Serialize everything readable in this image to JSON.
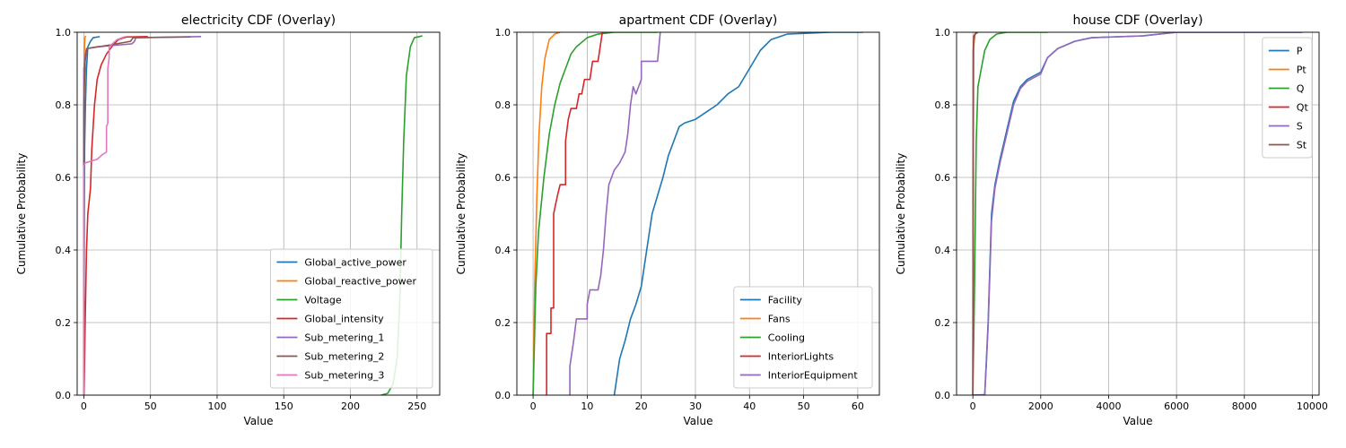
{
  "figure": {
    "colors": [
      "#1f77b4",
      "#ff7f0e",
      "#2ca02c",
      "#d62728",
      "#9467bd",
      "#8c564b",
      "#e377c2"
    ]
  },
  "chart_data": [
    {
      "type": "line",
      "title": "electricity CDF (Overlay)",
      "xlabel": "Value",
      "ylabel": "Cumulative Probability",
      "xlim": [
        -5,
        267
      ],
      "ylim": [
        0,
        1
      ],
      "xticks": [
        0,
        50,
        100,
        150,
        200,
        250
      ],
      "xticklabels": [
        "0",
        "50",
        "100",
        "150",
        "200",
        "250"
      ],
      "yticks": [
        0,
        0.2,
        0.4,
        0.6,
        0.8,
        1.0
      ],
      "yticklabels": [
        "0.0",
        "0.2",
        "0.4",
        "0.6",
        "0.8",
        "1.0"
      ],
      "grid": true,
      "legend_position": "lower-right",
      "series": [
        {
          "name": "Global_active_power",
          "color": "#1f77b4",
          "points": [
            [
              0,
              0
            ],
            [
              0.3,
              0.4
            ],
            [
              0.6,
              0.68
            ],
            [
              1.2,
              0.8
            ],
            [
              2,
              0.9
            ],
            [
              3,
              0.96
            ],
            [
              5,
              0.975
            ],
            [
              7,
              0.985
            ],
            [
              12,
              0.988
            ]
          ]
        },
        {
          "name": "Global_reactive_power",
          "color": "#ff7f0e",
          "points": [
            [
              0,
              0
            ],
            [
              0.1,
              0.45
            ],
            [
              0.2,
              0.8
            ],
            [
              0.4,
              0.95
            ],
            [
              0.8,
              0.985
            ],
            [
              1.4,
              0.99
            ]
          ]
        },
        {
          "name": "Voltage",
          "color": "#2ca02c",
          "points": [
            [
              223,
              0
            ],
            [
              228,
              0.005
            ],
            [
              232,
              0.03
            ],
            [
              235,
              0.1
            ],
            [
              237,
              0.25
            ],
            [
              238.5,
              0.5
            ],
            [
              240,
              0.7
            ],
            [
              242,
              0.88
            ],
            [
              245,
              0.96
            ],
            [
              248,
              0.985
            ],
            [
              254,
              0.99
            ]
          ]
        },
        {
          "name": "Global_intensity",
          "color": "#d62728",
          "points": [
            [
              0.2,
              0
            ],
            [
              1,
              0.2
            ],
            [
              2,
              0.4
            ],
            [
              3,
              0.5
            ],
            [
              5,
              0.57
            ],
            [
              6,
              0.68
            ],
            [
              8,
              0.8
            ],
            [
              10,
              0.87
            ],
            [
              13,
              0.91
            ],
            [
              17,
              0.94
            ],
            [
              22,
              0.965
            ],
            [
              26,
              0.98
            ],
            [
              32,
              0.987
            ],
            [
              48,
              0.988
            ]
          ]
        },
        {
          "name": "Sub_metering_1",
          "color": "#9467bd",
          "points": [
            [
              0,
              0
            ],
            [
              0,
              0.9
            ],
            [
              1,
              0.93
            ],
            [
              2,
              0.955
            ],
            [
              10,
              0.96
            ],
            [
              36,
              0.968
            ],
            [
              38,
              0.975
            ],
            [
              39,
              0.985
            ],
            [
              88,
              0.988
            ]
          ]
        },
        {
          "name": "Sub_metering_2",
          "color": "#8c564b",
          "points": [
            [
              0,
              0
            ],
            [
              0,
              0.8
            ],
            [
              1,
              0.92
            ],
            [
              2,
              0.955
            ],
            [
              20,
              0.965
            ],
            [
              35,
              0.975
            ],
            [
              37,
              0.985
            ],
            [
              80,
              0.987
            ]
          ]
        },
        {
          "name": "Sub_metering_3",
          "color": "#e377c2",
          "points": [
            [
              0,
              0
            ],
            [
              0,
              0.63
            ],
            [
              1,
              0.64
            ],
            [
              10,
              0.65
            ],
            [
              13,
              0.66
            ],
            [
              17,
              0.67
            ],
            [
              17,
              0.74
            ],
            [
              18,
              0.75
            ],
            [
              18,
              0.9
            ],
            [
              19,
              0.93
            ],
            [
              19,
              0.96
            ],
            [
              22,
              0.97
            ],
            [
              25,
              0.98
            ],
            [
              31,
              0.988
            ]
          ]
        }
      ]
    },
    {
      "type": "line",
      "title": "apartment CDF (Overlay)",
      "xlabel": "Value",
      "ylabel": "Cumulative Probability",
      "xlim": [
        -3,
        64
      ],
      "ylim": [
        0,
        1
      ],
      "xticks": [
        0,
        10,
        20,
        30,
        40,
        50,
        60
      ],
      "xticklabels": [
        "0",
        "10",
        "20",
        "30",
        "40",
        "50",
        "60"
      ],
      "yticks": [
        0,
        0.2,
        0.4,
        0.6,
        0.8,
        1.0
      ],
      "yticklabels": [
        "0.0",
        "0.2",
        "0.4",
        "0.6",
        "0.8",
        "1.0"
      ],
      "grid": true,
      "legend_position": "lower-right",
      "series": [
        {
          "name": "Facility",
          "color": "#1f77b4",
          "points": [
            [
              15,
              0
            ],
            [
              15.5,
              0.05
            ],
            [
              16,
              0.1
            ],
            [
              17,
              0.15
            ],
            [
              18,
              0.21
            ],
            [
              19,
              0.25
            ],
            [
              20,
              0.3
            ],
            [
              21,
              0.4
            ],
            [
              22,
              0.5
            ],
            [
              23,
              0.55
            ],
            [
              24,
              0.6
            ],
            [
              25,
              0.66
            ],
            [
              26,
              0.7
            ],
            [
              27,
              0.74
            ],
            [
              28,
              0.75
            ],
            [
              30,
              0.76
            ],
            [
              32,
              0.78
            ],
            [
              34,
              0.8
            ],
            [
              36,
              0.83
            ],
            [
              38,
              0.85
            ],
            [
              40,
              0.9
            ],
            [
              42,
              0.95
            ],
            [
              44,
              0.98
            ],
            [
              47,
              0.995
            ],
            [
              55,
              1.0
            ],
            [
              61,
              1.0
            ]
          ]
        },
        {
          "name": "Fans",
          "color": "#ff7f0e",
          "points": [
            [
              0,
              0
            ],
            [
              0.3,
              0.3
            ],
            [
              0.7,
              0.55
            ],
            [
              1.1,
              0.72
            ],
            [
              1.6,
              0.85
            ],
            [
              2.2,
              0.93
            ],
            [
              3,
              0.98
            ],
            [
              4,
              0.995
            ],
            [
              5,
              1.0
            ]
          ]
        },
        {
          "name": "Cooling",
          "color": "#2ca02c",
          "points": [
            [
              0,
              0
            ],
            [
              0.5,
              0.3
            ],
            [
              1,
              0.45
            ],
            [
              2,
              0.6
            ],
            [
              3,
              0.72
            ],
            [
              4,
              0.8
            ],
            [
              5,
              0.86
            ],
            [
              6,
              0.9
            ],
            [
              7,
              0.94
            ],
            [
              8,
              0.96
            ],
            [
              10,
              0.985
            ],
            [
              12,
              0.995
            ],
            [
              15,
              1.0
            ],
            [
              23,
              1.0
            ]
          ]
        },
        {
          "name": "InteriorLights",
          "color": "#d62728",
          "points": [
            [
              2.5,
              0
            ],
            [
              2.5,
              0.17
            ],
            [
              3.3,
              0.17
            ],
            [
              3.3,
              0.24
            ],
            [
              3.8,
              0.24
            ],
            [
              3.8,
              0.5
            ],
            [
              4.5,
              0.55
            ],
            [
              5,
              0.58
            ],
            [
              6,
              0.58
            ],
            [
              6,
              0.7
            ],
            [
              6.5,
              0.76
            ],
            [
              7,
              0.79
            ],
            [
              8,
              0.79
            ],
            [
              8.5,
              0.83
            ],
            [
              9,
              0.83
            ],
            [
              9.5,
              0.87
            ],
            [
              10.5,
              0.87
            ],
            [
              11,
              0.92
            ],
            [
              12,
              0.92
            ],
            [
              12.5,
              0.97
            ],
            [
              12.8,
              1.0
            ]
          ]
        },
        {
          "name": "InteriorEquipment",
          "color": "#9467bd",
          "points": [
            [
              6.8,
              0
            ],
            [
              6.8,
              0.08
            ],
            [
              7.5,
              0.15
            ],
            [
              8,
              0.21
            ],
            [
              10,
              0.21
            ],
            [
              10,
              0.25
            ],
            [
              10.5,
              0.29
            ],
            [
              12,
              0.29
            ],
            [
              12.5,
              0.33
            ],
            [
              13,
              0.4
            ],
            [
              13.5,
              0.5
            ],
            [
              14,
              0.58
            ],
            [
              15,
              0.62
            ],
            [
              16,
              0.64
            ],
            [
              17,
              0.67
            ],
            [
              17.5,
              0.72
            ],
            [
              18,
              0.8
            ],
            [
              18.5,
              0.85
            ],
            [
              19,
              0.83
            ],
            [
              20,
              0.87
            ],
            [
              20,
              0.92
            ],
            [
              23,
              0.92
            ],
            [
              23.5,
              1.0
            ]
          ]
        }
      ]
    },
    {
      "type": "line",
      "title": "house CDF (Overlay)",
      "xlabel": "Value",
      "ylabel": "Cumulative Probability",
      "xlim": [
        -480,
        10200
      ],
      "ylim": [
        0,
        1
      ],
      "xticks": [
        0,
        2000,
        4000,
        6000,
        8000,
        10000
      ],
      "xticklabels": [
        "0",
        "2000",
        "4000",
        "6000",
        "8000",
        "10000"
      ],
      "yticks": [
        0,
        0.2,
        0.4,
        0.6,
        0.8,
        1.0
      ],
      "yticklabels": [
        "0.0",
        "0.2",
        "0.4",
        "0.6",
        "0.8",
        "1.0"
      ],
      "grid": true,
      "legend_position": "upper-right",
      "series": [
        {
          "name": "P",
          "color": "#1f77b4",
          "points": [
            [
              0,
              0
            ],
            [
              350,
              0.001
            ],
            [
              400,
              0.1
            ],
            [
              450,
              0.2
            ],
            [
              500,
              0.35
            ],
            [
              550,
              0.5
            ],
            [
              650,
              0.58
            ],
            [
              800,
              0.65
            ],
            [
              1000,
              0.73
            ],
            [
              1200,
              0.81
            ],
            [
              1400,
              0.85
            ],
            [
              1600,
              0.87
            ],
            [
              2000,
              0.89
            ],
            [
              2200,
              0.93
            ],
            [
              2500,
              0.955
            ],
            [
              3000,
              0.975
            ],
            [
              3500,
              0.985
            ],
            [
              5000,
              0.99
            ],
            [
              6000,
              1.0
            ],
            [
              9700,
              1.0
            ]
          ]
        },
        {
          "name": "Pt",
          "color": "#ff7f0e",
          "points": [
            [
              0,
              0
            ],
            [
              20,
              0.95
            ],
            [
              50,
              0.99
            ],
            [
              100,
              1.0
            ]
          ]
        },
        {
          "name": "Q",
          "color": "#2ca02c",
          "points": [
            [
              0,
              0
            ],
            [
              50,
              0.3
            ],
            [
              100,
              0.7
            ],
            [
              150,
              0.85
            ],
            [
              250,
              0.9
            ],
            [
              350,
              0.95
            ],
            [
              500,
              0.98
            ],
            [
              700,
              0.995
            ],
            [
              1000,
              1.0
            ],
            [
              2200,
              1.0
            ]
          ]
        },
        {
          "name": "Qt",
          "color": "#d62728",
          "points": [
            [
              0,
              0
            ],
            [
              10,
              0.95
            ],
            [
              30,
              0.99
            ],
            [
              100,
              1.0
            ]
          ]
        },
        {
          "name": "S",
          "color": "#9467bd",
          "points": [
            [
              0,
              0
            ],
            [
              350,
              0.001
            ],
            [
              400,
              0.09
            ],
            [
              450,
              0.19
            ],
            [
              500,
              0.33
            ],
            [
              550,
              0.48
            ],
            [
              650,
              0.57
            ],
            [
              800,
              0.64
            ],
            [
              1000,
              0.72
            ],
            [
              1200,
              0.8
            ],
            [
              1400,
              0.845
            ],
            [
              1600,
              0.865
            ],
            [
              2000,
              0.885
            ],
            [
              2200,
              0.93
            ],
            [
              2500,
              0.955
            ],
            [
              3000,
              0.975
            ],
            [
              3500,
              0.985
            ],
            [
              5000,
              0.99
            ],
            [
              6000,
              1.0
            ],
            [
              9700,
              1.0
            ]
          ]
        },
        {
          "name": "St",
          "color": "#8c564b",
          "points": [
            [
              0,
              0
            ],
            [
              20,
              0.97
            ],
            [
              60,
              0.995
            ],
            [
              150,
              1.0
            ]
          ]
        }
      ]
    }
  ]
}
